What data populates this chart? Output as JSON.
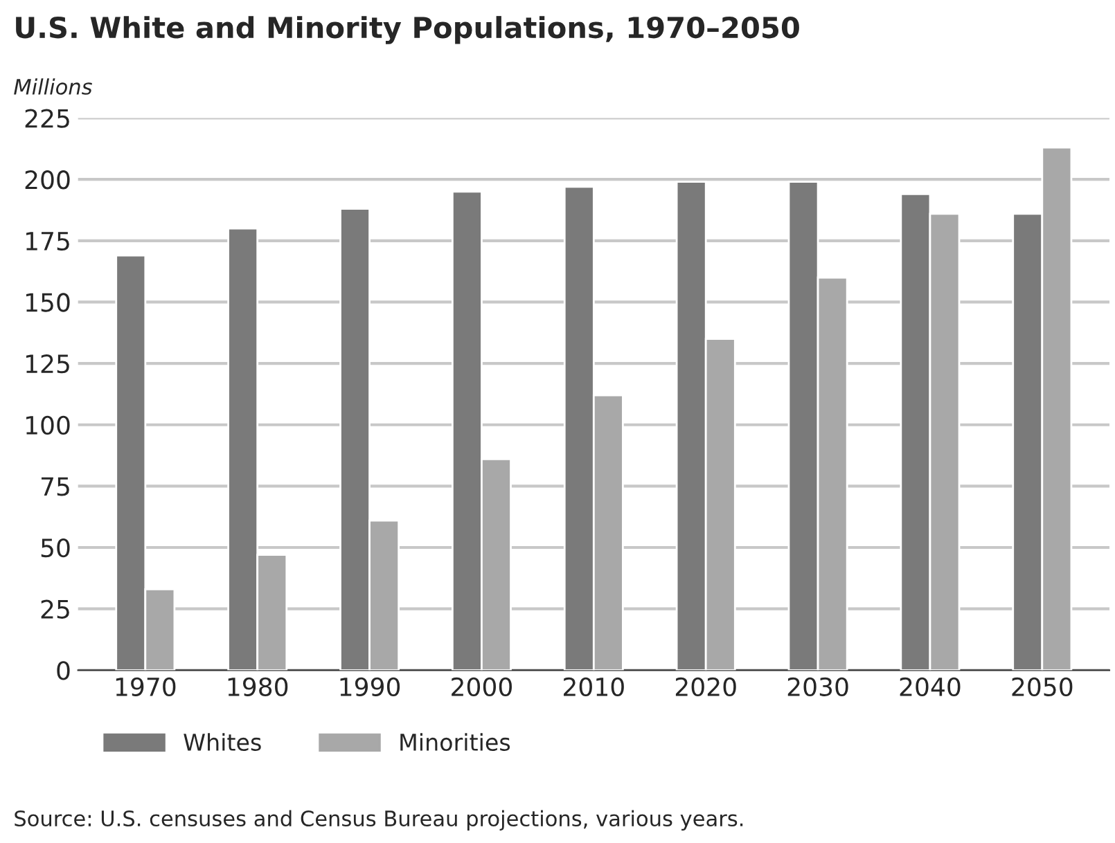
{
  "chart_data": {
    "type": "bar",
    "title": "U.S. White and Minority Populations, 1970–2050",
    "ylabel": "Millions",
    "categories": [
      "1970",
      "1980",
      "1990",
      "2000",
      "2010",
      "2020",
      "2030",
      "2040",
      "2050"
    ],
    "series": [
      {
        "name": "Whites",
        "color": "#7a7a7a",
        "values": [
          169,
          180,
          188,
          195,
          197,
          199,
          199,
          194,
          186
        ]
      },
      {
        "name": "Minorities",
        "color": "#a8a8a8",
        "values": [
          33,
          47,
          61,
          86,
          112,
          135,
          160,
          186,
          213
        ]
      }
    ],
    "ylim": [
      0,
      225
    ],
    "yticks": [
      0,
      25,
      50,
      75,
      100,
      125,
      150,
      175,
      200,
      225
    ],
    "grid": "y",
    "legend": "bottom left",
    "annotations": [
      "Source: U.S. censuses and Census Bureau projections, various years."
    ]
  }
}
